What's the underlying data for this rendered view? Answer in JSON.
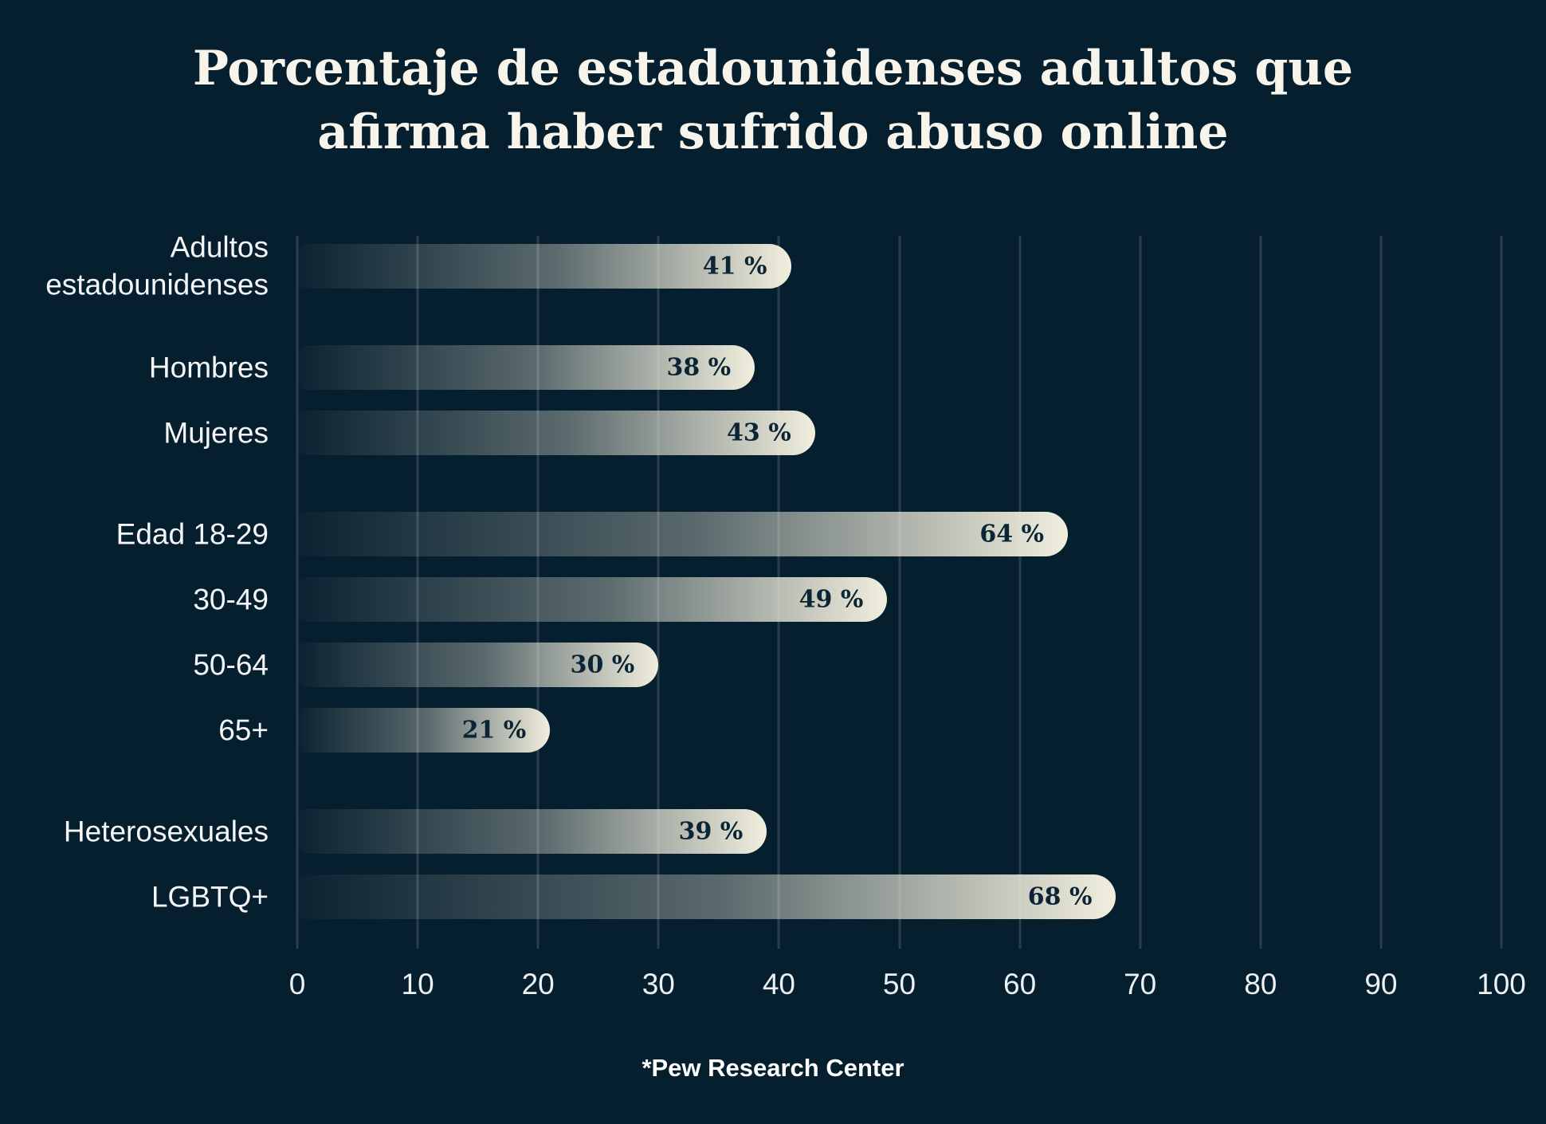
{
  "title": {
    "line1": "Porcentaje de estadounidenses adultos que",
    "line2": "afirma haber sufrido abuso online"
  },
  "footer": {
    "source": "*Pew Research Center"
  },
  "colors": {
    "background": "#061F2E",
    "gridline": "#2A3E50",
    "bar_fill_end": "#F1EEDD",
    "title_text": "#F7F4EB",
    "category_text": "#F4F6F7",
    "tick_text": "#EDF1F4",
    "value_text": "#0B2535"
  },
  "chart_data": {
    "type": "bar",
    "orientation": "horizontal",
    "title": "Porcentaje de estadounidenses adultos que afirma haber sufrido abuso online",
    "source": "*Pew Research Center",
    "unit": "%",
    "xlabel": "",
    "ylabel": "",
    "xlim": [
      0,
      100
    ],
    "x_ticks": [
      0,
      10,
      20,
      30,
      40,
      50,
      60,
      70,
      80,
      90,
      100
    ],
    "grid": true,
    "legend": false,
    "groups": [
      {
        "bars": [
          {
            "label": "Adultos estadounidenses",
            "value": 41,
            "value_label": "41 %"
          }
        ]
      },
      {
        "bars": [
          {
            "label": "Hombres",
            "value": 38,
            "value_label": "38 %"
          },
          {
            "label": "Mujeres",
            "value": 43,
            "value_label": "43 %"
          }
        ]
      },
      {
        "bars": [
          {
            "label": "Edad 18-29",
            "value": 64,
            "value_label": "64 %"
          },
          {
            "label": "30-49",
            "value": 49,
            "value_label": "49 %"
          },
          {
            "label": "50-64",
            "value": 30,
            "value_label": "30 %"
          },
          {
            "label": "65+",
            "value": 21,
            "value_label": "21 %"
          }
        ]
      },
      {
        "bars": [
          {
            "label": "Heterosexuales",
            "value": 39,
            "value_label": "39 %"
          },
          {
            "label": "LGBTQ+",
            "value": 68,
            "value_label": "68 %"
          }
        ]
      }
    ]
  }
}
